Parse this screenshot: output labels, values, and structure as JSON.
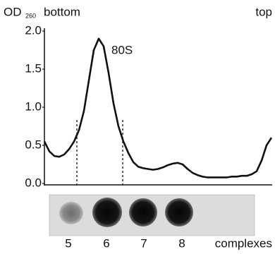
{
  "chart_data": {
    "type": "line",
    "y_label": "OD",
    "y_label_subscript": "260",
    "annotations": {
      "left": "bottom",
      "right": "top",
      "peak": "80S"
    },
    "color": "#111111",
    "values": [
      0.55,
      0.42,
      0.36,
      0.35,
      0.38,
      0.45,
      0.55,
      0.7,
      0.95,
      1.35,
      1.75,
      1.9,
      1.8,
      1.45,
      1.05,
      0.75,
      0.55,
      0.4,
      0.28,
      0.22,
      0.2,
      0.19,
      0.18,
      0.19,
      0.21,
      0.24,
      0.26,
      0.27,
      0.25,
      0.19,
      0.14,
      0.11,
      0.09,
      0.08,
      0.08,
      0.08,
      0.08,
      0.08,
      0.09,
      0.09,
      0.1,
      0.1,
      0.12,
      0.16,
      0.3,
      0.5,
      0.6
    ],
    "ylim": [
      0,
      2
    ],
    "yticks": [
      {
        "value": 0,
        "label": "0.0"
      },
      0.5,
      {
        "value": 1,
        "label": "1.0"
      },
      1.5,
      {
        "value": 2,
        "label": "2.0"
      }
    ]
  },
  "blot": {
    "lanes": [
      "5",
      "6",
      "7",
      "8"
    ],
    "label": "complexes"
  }
}
